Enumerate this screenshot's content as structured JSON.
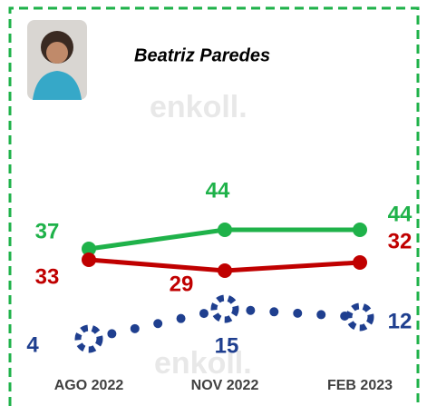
{
  "chart_data": {
    "type": "line",
    "title": "Beatriz Paredes",
    "watermark": "enkoll.",
    "categories": [
      "AGO 2022",
      "NOV 2022",
      "FEB 2023"
    ],
    "series": [
      {
        "color": "#1fb24a",
        "values": [
          37,
          44,
          44
        ]
      },
      {
        "color": "#c00000",
        "values": [
          33,
          29,
          32
        ]
      },
      {
        "color": "#1f3f8f",
        "values": [
          4,
          15,
          12
        ],
        "style": "dotted"
      }
    ],
    "ylim": [
      0,
      44
    ]
  }
}
